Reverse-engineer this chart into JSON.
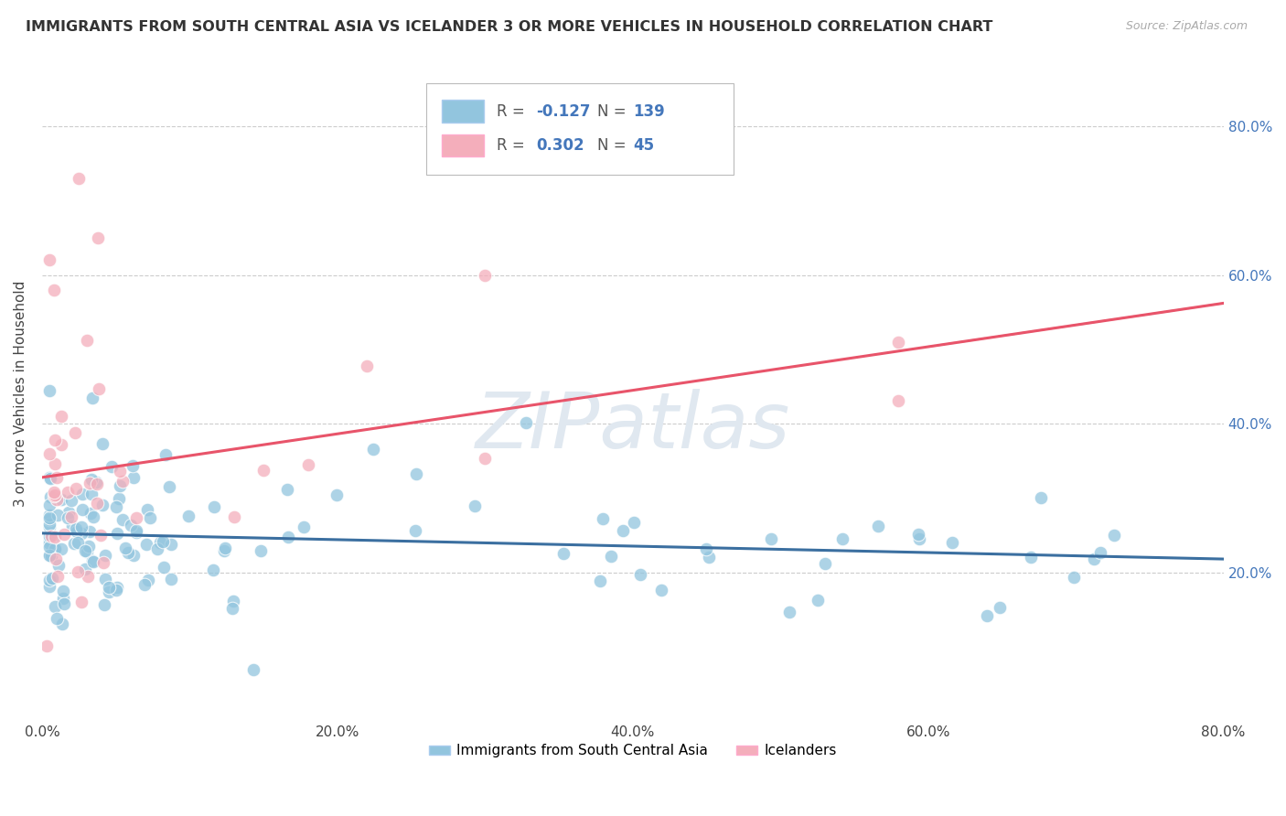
{
  "title": "IMMIGRANTS FROM SOUTH CENTRAL ASIA VS ICELANDER 3 OR MORE VEHICLES IN HOUSEHOLD CORRELATION CHART",
  "source": "Source: ZipAtlas.com",
  "ylabel": "3 or more Vehicles in Household",
  "xlim": [
    0.0,
    0.8
  ],
  "ylim": [
    0.0,
    0.88
  ],
  "xtick_labels": [
    "0.0%",
    "20.0%",
    "40.0%",
    "60.0%",
    "80.0%"
  ],
  "xtick_vals": [
    0.0,
    0.2,
    0.4,
    0.6,
    0.8
  ],
  "ytick_labels_right": [
    "20.0%",
    "40.0%",
    "60.0%",
    "80.0%"
  ],
  "ytick_vals_right": [
    0.2,
    0.4,
    0.6,
    0.8
  ],
  "blue_R": -0.127,
  "blue_N": 139,
  "pink_R": 0.302,
  "pink_N": 45,
  "blue_color": "#92C5DE",
  "pink_color": "#F4AEBB",
  "blue_line_color": "#3B6FA0",
  "pink_line_color": "#E8546A",
  "legend_label_blue": "Immigrants from South Central Asia",
  "legend_label_pink": "Icelanders",
  "watermark_text": "ZIPatlas",
  "legend_text_color": "#4477BB",
  "legend_label_color": "#555555"
}
